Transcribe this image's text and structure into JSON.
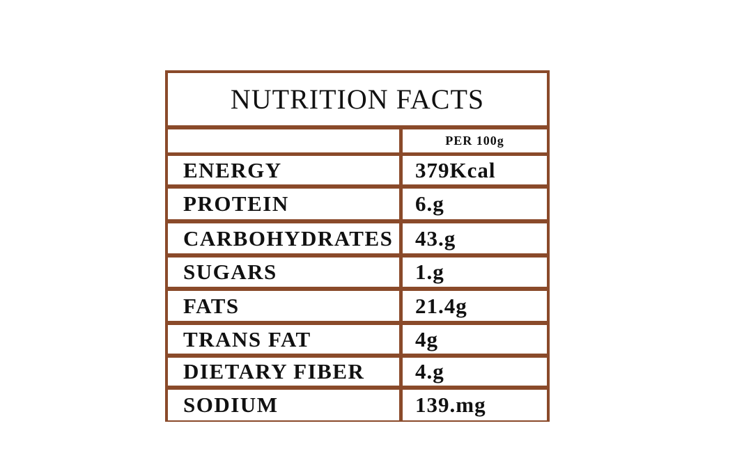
{
  "title": "NUTRITION FACTS",
  "header": {
    "per": "PER 100g"
  },
  "rows": [
    [
      "ENERGY",
      "379Kcal"
    ],
    [
      "PROTEIN",
      "6.g"
    ],
    [
      "CARBOHYDRATES",
      "43.g"
    ],
    [
      "SUGARS",
      "1.g"
    ],
    [
      "FATS",
      "21.4g"
    ],
    [
      "TRANS FAT",
      "4g"
    ],
    [
      "DIETARY FIBER",
      "4.g"
    ],
    [
      "SODIUM",
      "139.mg"
    ]
  ]
}
